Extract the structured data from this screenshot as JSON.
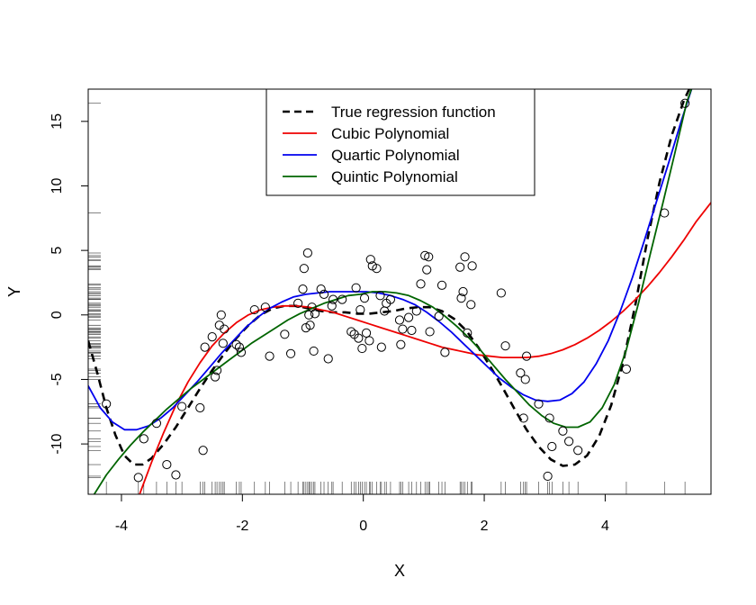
{
  "chart_data": {
    "type": "scatter",
    "title": "",
    "xlabel": "X",
    "ylabel": "Y",
    "xlim": [
      -4.55,
      5.75
    ],
    "ylim": [
      -13.9,
      17.5
    ],
    "x_ticks": [
      -4,
      -2,
      0,
      2,
      4
    ],
    "y_ticks": [
      -10,
      -5,
      0,
      5,
      10,
      15
    ],
    "x_tick_labels": [
      "-4",
      "-2",
      "0",
      "2",
      "4"
    ],
    "y_tick_labels": [
      "-10",
      "-5",
      "0",
      "5",
      "10",
      "15"
    ],
    "grid": false,
    "legend_position": "top-center",
    "rug": true,
    "points": {
      "x": [
        -4.25,
        -3.72,
        -3.63,
        -3.42,
        -3.25,
        -3.1,
        -3.0,
        -2.7,
        -2.65,
        -2.62,
        -2.5,
        -2.45,
        -2.42,
        -2.38,
        -2.35,
        -2.32,
        -2.3,
        -2.1,
        -2.05,
        -2.02,
        -1.8,
        -1.62,
        -1.55,
        -1.3,
        -1.2,
        -1.08,
        -1.0,
        -0.98,
        -0.95,
        -0.92,
        -0.9,
        -0.88,
        -0.85,
        -0.82,
        -0.8,
        -0.7,
        -0.65,
        -0.58,
        -0.52,
        -0.5,
        -0.35,
        -0.2,
        -0.15,
        -0.12,
        -0.08,
        -0.05,
        -0.02,
        0.02,
        0.05,
        0.1,
        0.12,
        0.15,
        0.22,
        0.28,
        0.3,
        0.35,
        0.38,
        0.45,
        0.6,
        0.62,
        0.65,
        0.75,
        0.8,
        0.88,
        0.95,
        1.02,
        1.05,
        1.08,
        1.1,
        1.25,
        1.3,
        1.35,
        1.6,
        1.62,
        1.65,
        1.68,
        1.72,
        1.78,
        1.8,
        2.28,
        2.35,
        2.6,
        2.65,
        2.68,
        2.7,
        2.9,
        3.05,
        3.08,
        3.12,
        3.3,
        3.4,
        3.55,
        4.35,
        4.98,
        5.32
      ],
      "y": [
        -6.9,
        -12.6,
        -9.6,
        -8.4,
        -11.6,
        -12.4,
        -7.1,
        -7.2,
        -10.5,
        -2.5,
        -1.7,
        -4.8,
        -4.3,
        -0.8,
        0.0,
        -2.2,
        -1.1,
        -2.3,
        -2.5,
        -2.9,
        0.4,
        0.6,
        -3.2,
        -1.5,
        -3.0,
        0.9,
        2.0,
        3.6,
        -1.0,
        4.8,
        0.0,
        -0.8,
        0.6,
        -2.8,
        0.1,
        2.0,
        1.6,
        -3.4,
        0.7,
        1.2,
        1.2,
        -1.3,
        -1.5,
        2.1,
        -1.8,
        0.4,
        -2.6,
        1.3,
        -1.4,
        -2.0,
        4.3,
        3.8,
        3.6,
        1.5,
        -2.5,
        0.3,
        0.9,
        1.2,
        -0.4,
        -2.3,
        -1.1,
        -0.2,
        -1.2,
        0.3,
        2.4,
        4.6,
        3.5,
        4.5,
        -1.3,
        -0.1,
        2.3,
        -2.9,
        3.7,
        1.3,
        1.8,
        4.5,
        -1.4,
        0.8,
        3.8,
        1.7,
        -2.4,
        -4.5,
        -8.0,
        -5.0,
        -3.2,
        -6.9,
        -12.5,
        -8.0,
        -10.2,
        -9.0,
        -9.8,
        -10.5,
        -4.2,
        7.9,
        16.4
      ]
    },
    "rug_x": [
      -4.25,
      -3.72,
      -3.63,
      -3.42,
      -3.25,
      -3.1,
      -3.0,
      -2.7,
      -2.65,
      -2.62,
      -2.5,
      -2.45,
      -2.42,
      -2.38,
      -2.35,
      -2.32,
      -2.3,
      -2.1,
      -2.05,
      -2.02,
      -1.8,
      -1.62,
      -1.55,
      -1.3,
      -1.2,
      -1.08,
      -1.0,
      -0.98,
      -0.95,
      -0.92,
      -0.9,
      -0.88,
      -0.85,
      -0.82,
      -0.8,
      -0.7,
      -0.65,
      -0.58,
      -0.52,
      -0.5,
      -0.35,
      -0.2,
      -0.15,
      -0.12,
      -0.08,
      -0.05,
      -0.02,
      0.02,
      0.05,
      0.1,
      0.12,
      0.15,
      0.22,
      0.28,
      0.3,
      0.35,
      0.38,
      0.45,
      0.6,
      0.62,
      0.65,
      0.75,
      0.8,
      0.88,
      0.95,
      1.02,
      1.05,
      1.08,
      1.1,
      1.25,
      1.3,
      1.35,
      1.6,
      1.62,
      1.65,
      1.68,
      1.72,
      1.78,
      1.8,
      2.28,
      2.35,
      2.6,
      2.65,
      2.68,
      2.7,
      2.9,
      3.05,
      3.08,
      3.12,
      3.3,
      3.4,
      3.55,
      4.35,
      4.98,
      5.32
    ],
    "rug_y": [
      -12.6,
      -12.5,
      -11.6,
      -10.5,
      -10.2,
      -9.8,
      -9.6,
      -9.0,
      -8.4,
      -8.0,
      -8.0,
      -7.2,
      -7.1,
      -6.9,
      -6.9,
      -5.0,
      -4.8,
      -4.5,
      -4.3,
      -4.2,
      -3.4,
      -3.2,
      -3.2,
      -3.0,
      -2.9,
      -2.9,
      -2.8,
      -2.6,
      -2.5,
      -2.5,
      -2.5,
      -2.4,
      -2.3,
      -2.3,
      -2.2,
      -2.0,
      -1.8,
      -1.7,
      -1.5,
      -1.5,
      -1.4,
      -1.4,
      -1.3,
      -1.3,
      -1.2,
      -1.1,
      -1.1,
      -1.0,
      -0.8,
      -0.8,
      -0.4,
      -0.2,
      -0.1,
      0.0,
      0.0,
      0.1,
      0.3,
      0.3,
      0.4,
      0.4,
      0.6,
      0.6,
      0.7,
      0.8,
      0.9,
      0.9,
      1.2,
      1.2,
      1.2,
      1.3,
      1.3,
      1.5,
      1.6,
      1.7,
      1.8,
      2.0,
      2.0,
      2.1,
      2.3,
      2.4,
      3.5,
      3.6,
      3.6,
      3.7,
      3.8,
      3.8,
      4.2,
      4.3,
      4.5,
      4.5,
      4.6,
      4.8,
      7.9,
      16.4
    ],
    "legend": [
      {
        "label": "True regression function",
        "color": "#000000",
        "dash": true
      },
      {
        "label": "Cubic Polynomial",
        "color": "#ee0000",
        "dash": false
      },
      {
        "label": "Quartic Polynomial",
        "color": "#0000ee",
        "dash": false
      },
      {
        "label": "Quintic Polynomial",
        "color": "#006400",
        "dash": false
      }
    ],
    "series": [
      {
        "name": "True regression function",
        "color": "#000000",
        "dash": true,
        "x": [
          -4.55,
          -4.4,
          -4.25,
          -4.1,
          -3.95,
          -3.8,
          -3.65,
          -3.5,
          -3.3,
          -3.1,
          -2.9,
          -2.7,
          -2.5,
          -2.3,
          -2.1,
          -1.9,
          -1.7,
          -1.5,
          -1.3,
          -1.1,
          -0.9,
          -0.7,
          -0.5,
          -0.3,
          -0.1,
          0.1,
          0.3,
          0.5,
          0.7,
          0.9,
          1.1,
          1.3,
          1.5,
          1.7,
          1.9,
          2.1,
          2.3,
          2.5,
          2.7,
          2.9,
          3.1,
          3.3,
          3.5,
          3.7,
          3.9,
          4.1,
          4.3,
          4.5,
          4.7,
          4.9,
          5.1,
          5.3,
          5.42
        ],
        "y": [
          -2.0,
          -4.5,
          -7.2,
          -9.3,
          -10.9,
          -11.6,
          -11.6,
          -11.1,
          -10.0,
          -8.7,
          -7.2,
          -5.7,
          -4.3,
          -3.0,
          -1.8,
          -0.8,
          0.0,
          0.5,
          0.7,
          0.7,
          0.5,
          0.3,
          0.2,
          0.2,
          0.1,
          0.1,
          0.2,
          0.3,
          0.5,
          0.6,
          0.6,
          0.3,
          -0.3,
          -1.2,
          -2.5,
          -4.0,
          -5.6,
          -7.3,
          -8.9,
          -10.2,
          -11.2,
          -11.7,
          -11.6,
          -10.9,
          -9.4,
          -7.0,
          -3.6,
          0.8,
          5.9,
          10.3,
          13.9,
          16.6,
          17.8
        ]
      },
      {
        "name": "Cubic Polynomial",
        "color": "#ee0000",
        "dash": false,
        "x": [
          -3.7,
          -3.5,
          -3.3,
          -3.1,
          -2.9,
          -2.7,
          -2.5,
          -2.3,
          -2.1,
          -1.9,
          -1.7,
          -1.5,
          -1.3,
          -1.1,
          -0.9,
          -0.7,
          -0.5,
          -0.3,
          -0.1,
          0.1,
          0.3,
          0.5,
          0.7,
          0.9,
          1.1,
          1.3,
          1.5,
          1.7,
          1.9,
          2.1,
          2.3,
          2.5,
          2.7,
          2.9,
          3.1,
          3.3,
          3.5,
          3.7,
          3.9,
          4.1,
          4.3,
          4.5,
          4.7,
          4.9,
          5.1,
          5.3,
          5.5,
          5.75
        ],
        "y": [
          -13.9,
          -11.4,
          -9.1,
          -7.0,
          -5.2,
          -3.7,
          -2.4,
          -1.4,
          -0.6,
          0.0,
          0.4,
          0.6,
          0.7,
          0.7,
          0.6,
          0.4,
          0.2,
          -0.1,
          -0.4,
          -0.7,
          -1.0,
          -1.3,
          -1.6,
          -1.9,
          -2.2,
          -2.5,
          -2.7,
          -2.9,
          -3.1,
          -3.2,
          -3.3,
          -3.3,
          -3.3,
          -3.2,
          -3.0,
          -2.7,
          -2.3,
          -1.8,
          -1.2,
          -0.5,
          0.3,
          1.2,
          2.2,
          3.3,
          4.5,
          5.8,
          7.2,
          8.7
        ]
      },
      {
        "name": "Quartic Polynomial",
        "color": "#0000ee",
        "dash": false,
        "x": [
          -4.55,
          -4.35,
          -4.15,
          -3.95,
          -3.75,
          -3.55,
          -3.35,
          -3.15,
          -2.95,
          -2.75,
          -2.55,
          -2.35,
          -2.15,
          -1.95,
          -1.75,
          -1.55,
          -1.35,
          -1.15,
          -0.95,
          -0.75,
          -0.55,
          -0.35,
          -0.15,
          0.05,
          0.25,
          0.45,
          0.65,
          0.85,
          1.05,
          1.25,
          1.45,
          1.65,
          1.85,
          2.05,
          2.25,
          2.45,
          2.65,
          2.85,
          3.05,
          3.25,
          3.45,
          3.65,
          3.85,
          4.05,
          4.25,
          4.45,
          4.65,
          4.85,
          5.05,
          5.25,
          5.45
        ],
        "y": [
          -5.5,
          -7.2,
          -8.3,
          -8.9,
          -8.9,
          -8.6,
          -8.0,
          -7.2,
          -6.2,
          -5.2,
          -4.1,
          -3.0,
          -2.0,
          -1.0,
          -0.2,
          0.5,
          1.0,
          1.4,
          1.6,
          1.7,
          1.8,
          1.8,
          1.8,
          1.8,
          1.7,
          1.5,
          1.2,
          0.8,
          0.2,
          -0.5,
          -1.3,
          -2.2,
          -3.1,
          -4.0,
          -4.9,
          -5.6,
          -6.2,
          -6.6,
          -6.7,
          -6.6,
          -6.1,
          -5.2,
          -3.8,
          -2.0,
          0.3,
          2.9,
          5.8,
          8.8,
          11.8,
          14.9,
          17.8
        ]
      },
      {
        "name": "Quintic Polynomial",
        "color": "#006400",
        "dash": false,
        "x": [
          -4.45,
          -4.25,
          -4.05,
          -3.85,
          -3.65,
          -3.45,
          -3.25,
          -3.05,
          -2.85,
          -2.65,
          -2.45,
          -2.25,
          -2.05,
          -1.85,
          -1.65,
          -1.45,
          -1.25,
          -1.05,
          -0.85,
          -0.65,
          -0.45,
          -0.25,
          -0.05,
          0.15,
          0.35,
          0.55,
          0.75,
          0.95,
          1.15,
          1.35,
          1.55,
          1.75,
          1.95,
          2.15,
          2.35,
          2.55,
          2.75,
          2.95,
          3.15,
          3.35,
          3.55,
          3.75,
          3.95,
          4.15,
          4.35,
          4.55,
          4.75,
          4.95,
          5.15,
          5.35,
          5.45
        ],
        "y": [
          -13.9,
          -12.4,
          -11.2,
          -10.1,
          -9.1,
          -8.2,
          -7.3,
          -6.5,
          -5.7,
          -5.0,
          -4.3,
          -3.6,
          -2.9,
          -2.2,
          -1.6,
          -1.0,
          -0.4,
          0.1,
          0.5,
          0.9,
          1.2,
          1.5,
          1.6,
          1.8,
          1.8,
          1.7,
          1.5,
          1.1,
          0.6,
          -0.1,
          -0.9,
          -1.8,
          -2.8,
          -3.9,
          -5.0,
          -6.0,
          -7.0,
          -7.8,
          -8.4,
          -8.7,
          -8.7,
          -8.3,
          -7.2,
          -5.4,
          -2.7,
          0.9,
          4.8,
          8.6,
          12.5,
          16.5,
          17.8
        ]
      }
    ]
  }
}
